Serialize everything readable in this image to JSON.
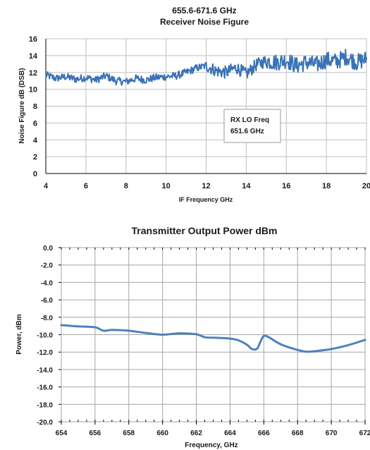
{
  "chart_data": [
    {
      "type": "line",
      "title": "655.6-671.6 GHz",
      "subtitle": "Receiver Noise Figure",
      "xlabel": "IF Frequency GHz",
      "ylabel": "Noise Figure dB (DSB)",
      "xlim": [
        4,
        20
      ],
      "ylim": [
        0,
        16
      ],
      "x_ticks": [
        4,
        6,
        8,
        10,
        12,
        14,
        16,
        18,
        20
      ],
      "y_ticks": [
        0,
        2,
        4,
        6,
        8,
        10,
        12,
        14,
        16
      ],
      "grid": true,
      "annotation": {
        "lines": [
          "RX LO Freq",
          "651.6 GHz"
        ]
      },
      "line_color": "#3a72b5",
      "series": [
        {
          "name": "",
          "x": [
            4,
            4.5,
            5,
            5.5,
            6,
            6.5,
            7,
            7.5,
            8,
            8.5,
            9,
            9.5,
            10,
            10.5,
            11,
            11.5,
            12,
            12.5,
            13,
            13.5,
            14,
            14.5,
            15,
            15.5,
            16,
            16.5,
            17,
            17.5,
            18,
            18.5,
            19,
            19.5,
            20
          ],
          "y": [
            11.7,
            11.3,
            11.5,
            11.2,
            11.4,
            11.1,
            11.6,
            11.0,
            10.9,
            11.3,
            11.1,
            11.4,
            11.5,
            11.6,
            12.0,
            12.5,
            12.8,
            12.2,
            12.0,
            12.6,
            11.8,
            12.9,
            13.4,
            13.2,
            13.5,
            12.8,
            13.2,
            12.9,
            13.5,
            13.3,
            13.9,
            13.2,
            13.6
          ]
        }
      ]
    },
    {
      "type": "line",
      "title": "Transmitter Output Power dBm",
      "xlabel": "Frequency, GHz",
      "ylabel": "Power, dBm",
      "xlim": [
        654,
        672
      ],
      "ylim": [
        -20,
        0
      ],
      "x_ticks": [
        654,
        656,
        658,
        660,
        662,
        664,
        666,
        668,
        670,
        672
      ],
      "x_tick_labels": [
        "654",
        "656",
        "658",
        "660",
        "662",
        "664",
        "666",
        "668",
        "670",
        "672"
      ],
      "y_ticks": [
        0,
        -2,
        -4,
        -6,
        -8,
        -10,
        -12,
        -14,
        -16,
        -18,
        -20
      ],
      "y_tick_labels": [
        "0.0",
        "-2.0",
        "-4.0",
        "-6.0",
        "-8.0",
        "-10.0",
        "-12.0",
        "-14.0",
        "-16.0",
        "-18.0",
        "-20.0"
      ],
      "grid": true,
      "line_color": "#4f81bd",
      "series": [
        {
          "name": "",
          "x": [
            654,
            655,
            656,
            656.5,
            657,
            658,
            659,
            660,
            661,
            662,
            662.5,
            663,
            664,
            664.5,
            665,
            665.3,
            665.6,
            665.8,
            666,
            666.3,
            667,
            668,
            668.5,
            669,
            670,
            671,
            672
          ],
          "y": [
            -8.9,
            -9.05,
            -9.15,
            -9.55,
            -9.45,
            -9.55,
            -9.8,
            -10.0,
            -9.85,
            -9.95,
            -10.3,
            -10.35,
            -10.45,
            -10.65,
            -11.15,
            -11.65,
            -11.6,
            -10.8,
            -10.15,
            -10.3,
            -11.1,
            -11.75,
            -11.95,
            -11.9,
            -11.65,
            -11.2,
            -10.6
          ]
        }
      ]
    }
  ]
}
